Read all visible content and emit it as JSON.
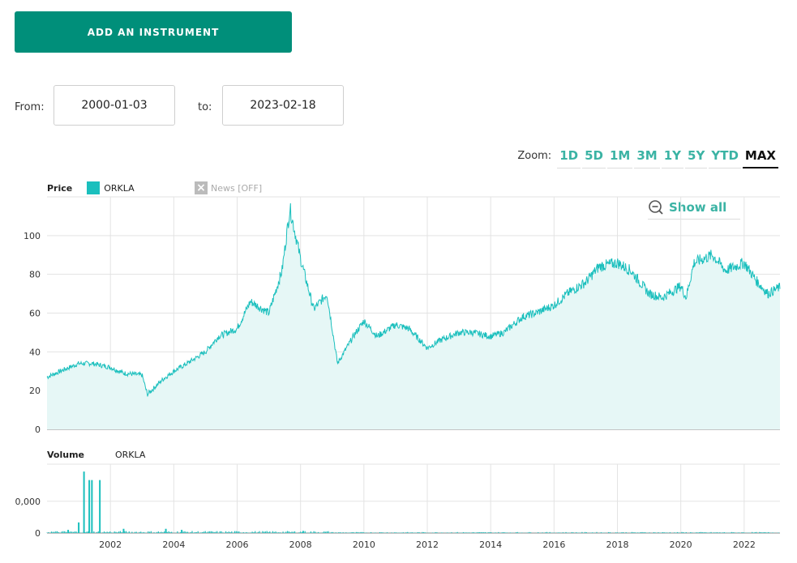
{
  "toolbar": {
    "add_label": "ADD AN INSTRUMENT"
  },
  "range": {
    "from_label": "From:",
    "from_value": "2000-01-03",
    "to_label": "to:",
    "to_value": "2023-02-18"
  },
  "zoom": {
    "label": "Zoom:",
    "options": [
      "1D",
      "5D",
      "1M",
      "3M",
      "1Y",
      "5Y",
      "YTD",
      "MAX"
    ],
    "active": "MAX"
  },
  "price_legend": {
    "title": "Price",
    "series": "ORKLA"
  },
  "news": {
    "label": "News [OFF]"
  },
  "show_all": {
    "label": "Show all"
  },
  "volume_legend": {
    "title": "Volume",
    "series": "ORKLA"
  },
  "colors": {
    "accent": "#008f7a",
    "series": "#1abfbd",
    "fill": "#e6f7f6",
    "link": "#3bb3a4"
  },
  "chart_data": [
    {
      "type": "area",
      "title": "Price",
      "series": [
        {
          "name": "ORKLA",
          "x": [
            "2000-01",
            "2000-06",
            "2001-01",
            "2001-06",
            "2002-01",
            "2002-06",
            "2003-01",
            "2003-03",
            "2003-09",
            "2004-01",
            "2004-06",
            "2005-01",
            "2005-06",
            "2006-01",
            "2006-06",
            "2007-01",
            "2007-06",
            "2007-09",
            "2008-01",
            "2008-06",
            "2008-11",
            "2009-03",
            "2009-09",
            "2010-01",
            "2010-06",
            "2011-01",
            "2011-06",
            "2012-01",
            "2012-06",
            "2013-01",
            "2013-06",
            "2014-01",
            "2014-06",
            "2015-01",
            "2015-06",
            "2016-01",
            "2016-06",
            "2017-01",
            "2017-06",
            "2018-01",
            "2018-06",
            "2019-01",
            "2019-06",
            "2020-01",
            "2020-03",
            "2020-06",
            "2021-01",
            "2021-06",
            "2022-01",
            "2022-06",
            "2022-10",
            "2023-02"
          ],
          "values": [
            27,
            30,
            34,
            34,
            32,
            29,
            28,
            18,
            26,
            30,
            34,
            40,
            48,
            52,
            66,
            60,
            82,
            114,
            88,
            62,
            70,
            34,
            48,
            56,
            48,
            54,
            52,
            42,
            46,
            50,
            50,
            48,
            50,
            58,
            60,
            64,
            70,
            76,
            84,
            86,
            82,
            70,
            68,
            74,
            68,
            86,
            90,
            82,
            86,
            76,
            70,
            73
          ]
        }
      ],
      "xticks": [
        "2002",
        "2004",
        "2006",
        "2008",
        "2010",
        "2012",
        "2014",
        "2016",
        "2018",
        "2020",
        "2022"
      ],
      "yticks": [
        "0",
        "20",
        "40",
        "60",
        "80",
        "100"
      ],
      "ylim": [
        0,
        120
      ],
      "grid": true
    },
    {
      "type": "bar",
      "title": "Volume",
      "series": [
        {
          "name": "ORKLA",
          "x": [
            "2000-09",
            "2001-01",
            "2001-03",
            "2001-05",
            "2001-06",
            "2001-09",
            "2002-06",
            "2003-10",
            "2004-04",
            "2008-02"
          ],
          "values": [
            0.03,
            0.1,
            0.58,
            0.5,
            0.5,
            0.5,
            0.04,
            0.04,
            0.03,
            0.02
          ]
        }
      ],
      "yticks": [
        "0",
        "0,000"
      ],
      "ylim": [
        0,
        0.65
      ],
      "grid": true
    }
  ]
}
